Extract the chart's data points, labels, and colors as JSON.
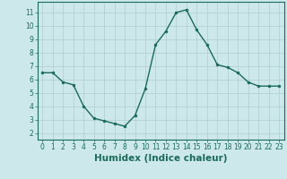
{
  "x": [
    0,
    1,
    2,
    3,
    4,
    5,
    6,
    7,
    8,
    9,
    10,
    11,
    12,
    13,
    14,
    15,
    16,
    17,
    18,
    19,
    20,
    21,
    22,
    23
  ],
  "y": [
    6.5,
    6.5,
    5.8,
    5.6,
    4.0,
    3.1,
    2.9,
    2.7,
    2.5,
    3.3,
    5.3,
    8.6,
    9.6,
    11.0,
    11.2,
    9.7,
    8.6,
    7.1,
    6.9,
    6.5,
    5.8,
    5.5,
    5.5,
    5.5
  ],
  "line_color": "#1a6b5a",
  "marker": "o",
  "marker_size": 2.0,
  "bg_color": "#cce8ea",
  "grid_color": "#b0ccce",
  "xlabel": "Humidex (Indice chaleur)",
  "ylim": [
    1.5,
    11.8
  ],
  "xlim": [
    -0.5,
    23.5
  ],
  "yticks": [
    2,
    3,
    4,
    5,
    6,
    7,
    8,
    9,
    10,
    11
  ],
  "xticks": [
    0,
    1,
    2,
    3,
    4,
    5,
    6,
    7,
    8,
    9,
    10,
    11,
    12,
    13,
    14,
    15,
    16,
    17,
    18,
    19,
    20,
    21,
    22,
    23
  ],
  "tick_label_fontsize": 5.5,
  "xlabel_fontsize": 7.5,
  "linewidth": 1.0
}
